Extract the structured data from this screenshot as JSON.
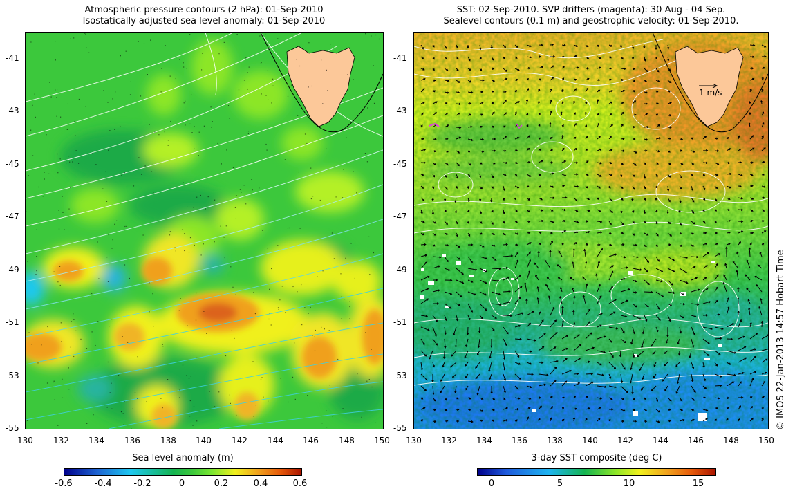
{
  "left_panel": {
    "title_line1": "Atmospheric pressure contours (2 hPa): 01-Sep-2010",
    "title_line2": "Isostatically adjusted sea level anomaly: 01-Sep-2010",
    "colorbar_label": "Sea level anomaly (m)",
    "colorbar_ticks": [
      "-0.6",
      "-0.4",
      "-0.2",
      "0",
      "0.2",
      "0.4",
      "0.6"
    ],
    "colorbar_range": [
      -0.6,
      0.6
    ],
    "colormap": [
      "#00008b",
      "#1e64d2",
      "#1ec8f0",
      "#14b450",
      "#78e632",
      "#f0f01e",
      "#f0a01e",
      "#e65a0a",
      "#aa1400"
    ]
  },
  "right_panel": {
    "title_line1": "SST: 02-Sep-2010. SVP drifters (magenta): 30 Aug - 04 Sep.",
    "title_line2": "Sealevel contours (0.1 m) and geostrophic velocity: 01-Sep-2010.",
    "colorbar_label": "3-day SST composite (deg C)",
    "colorbar_ticks": [
      "0",
      "5",
      "10",
      "15"
    ],
    "colorbar_range": [
      -2,
      16.5
    ],
    "colormap": [
      "#00008b",
      "#1e5adc",
      "#1eb4f0",
      "#14b450",
      "#8ce628",
      "#f0f01e",
      "#f0a01e",
      "#e65a0a",
      "#aa1400"
    ],
    "velocity_scale_label": "1 m/s"
  },
  "axes": {
    "x_ticks": [
      "130",
      "132",
      "134",
      "136",
      "138",
      "140",
      "142",
      "144",
      "146",
      "148",
      "150"
    ],
    "y_ticks": [
      "-41",
      "-43",
      "-45",
      "-47",
      "-49",
      "-51",
      "-53",
      "-55"
    ],
    "lon_range": [
      130,
      150
    ],
    "lat_range": [
      -55,
      -40.1
    ]
  },
  "credit": "© IMOS 22-Jan-2013 14:57 Hobart Time",
  "colors": {
    "land": "#fcc899",
    "bathymetry_contour": "#000000",
    "pressure_contour_light": "#ffffff",
    "pressure_contour_cyan": "#40d8e0",
    "drifter": "#e040e0",
    "missing_data": "#ffffff"
  }
}
